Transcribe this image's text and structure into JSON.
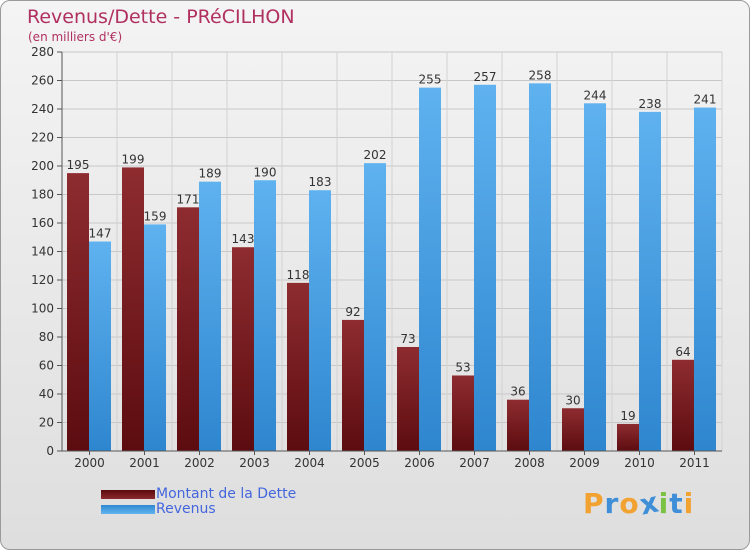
{
  "title": "Revenus/Dette - PRéCILHON",
  "subtitle": "(en milliers d'€)",
  "chart_data": {
    "type": "bar",
    "title": "Revenus/Dette - PRéCILHON",
    "ylabel": "(en milliers d'€)",
    "xlabel": "",
    "categories": [
      "2000",
      "2001",
      "2002",
      "2003",
      "2004",
      "2005",
      "2006",
      "2007",
      "2008",
      "2009",
      "2010",
      "2011"
    ],
    "series": [
      {
        "name": "Montant de la Dette",
        "color": "#7a1e22",
        "values": [
          195,
          199,
          171,
          143,
          118,
          92,
          73,
          53,
          36,
          30,
          19,
          64
        ]
      },
      {
        "name": "Revenus",
        "color": "#4fa3e6",
        "values": [
          147,
          159,
          189,
          190,
          183,
          202,
          255,
          257,
          258,
          244,
          238,
          241
        ]
      }
    ],
    "ylim": [
      0,
      280
    ],
    "yticks": [
      0,
      20,
      40,
      60,
      80,
      100,
      120,
      140,
      160,
      180,
      200,
      220,
      240,
      260,
      280
    ],
    "grid": true,
    "legend_position": "bottom-left"
  },
  "legend": [
    {
      "label": "Montant de la Dette",
      "color": "#7a1e22"
    },
    {
      "label": "Revenus",
      "color": "#4fa3e6"
    }
  ],
  "logo": {
    "text": "Proxiti",
    "letters": [
      {
        "char": "P",
        "color": "#f2a230"
      },
      {
        "char": "r",
        "color": "#3e8ed8"
      },
      {
        "char": "o",
        "color": "#f2a230"
      },
      {
        "char": "x",
        "color": "#3e8ed8"
      },
      {
        "char": "i",
        "color": "#7bc142"
      },
      {
        "char": "t",
        "color": "#3e8ed8"
      },
      {
        "char": "i",
        "color": "#f2a230"
      }
    ]
  }
}
